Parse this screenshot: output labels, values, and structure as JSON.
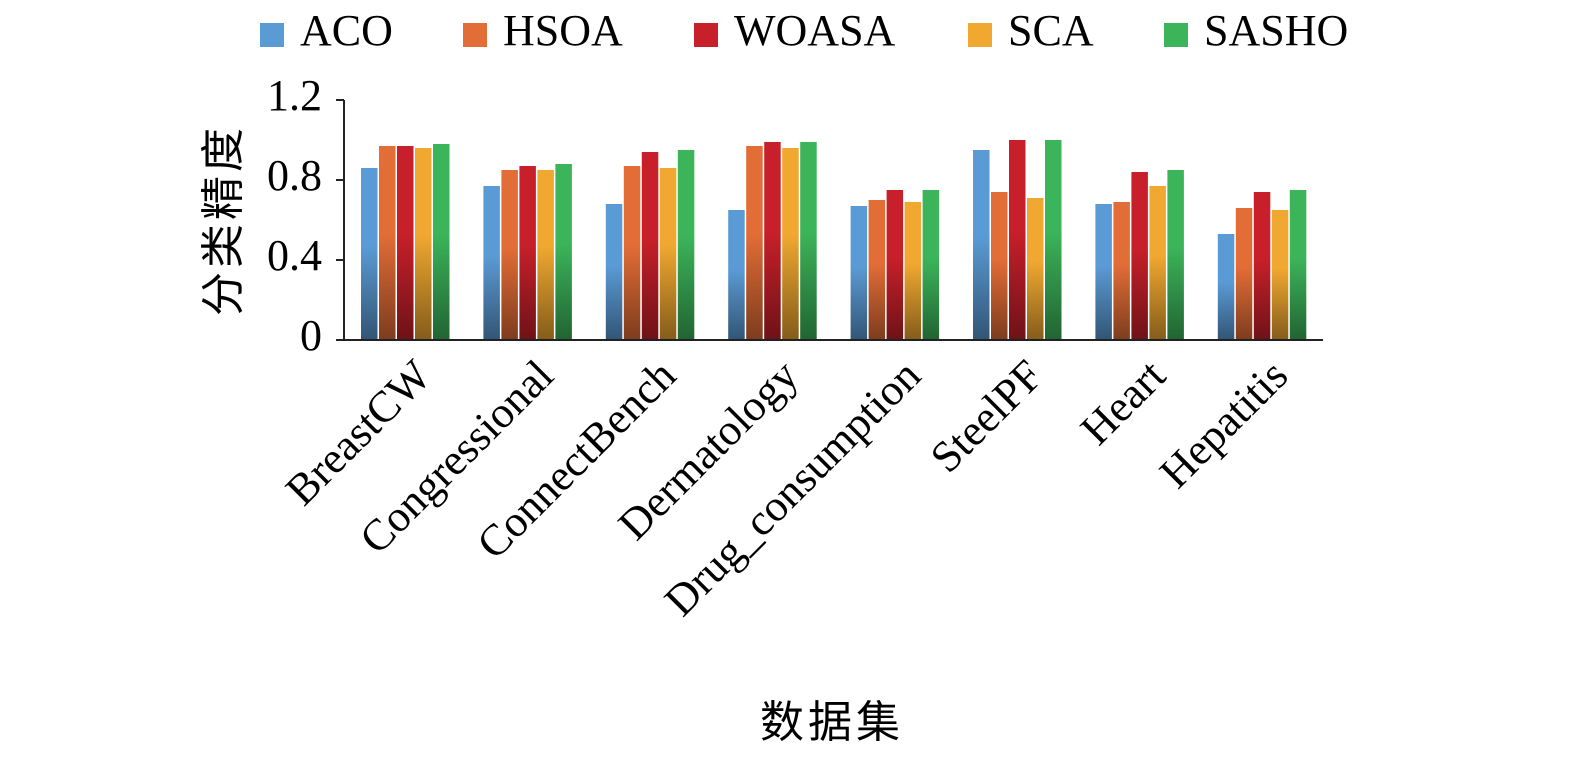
{
  "chart_data": {
    "type": "bar",
    "categories": [
      "BreastCW",
      "Congressional",
      "ConnectBench",
      "Dermatology",
      "Drug_consumption",
      "SteelPF",
      "Heart",
      "Hepatitis"
    ],
    "series": [
      {
        "name": "ACO",
        "color": "#5b9bd5",
        "values": [
          0.86,
          0.77,
          0.68,
          0.65,
          0.67,
          0.95,
          0.68,
          0.53
        ]
      },
      {
        "name": "HSOA",
        "color": "#e36d37",
        "values": [
          0.97,
          0.85,
          0.87,
          0.97,
          0.7,
          0.74,
          0.69,
          0.66
        ]
      },
      {
        "name": "WOASA",
        "color": "#c8202a",
        "values": [
          0.97,
          0.87,
          0.94,
          0.99,
          0.75,
          1.0,
          0.84,
          0.74
        ]
      },
      {
        "name": "SCA",
        "color": "#f0a830",
        "values": [
          0.96,
          0.85,
          0.86,
          0.96,
          0.69,
          0.71,
          0.77,
          0.65
        ]
      },
      {
        "name": "SASHO",
        "color": "#3cb55a",
        "values": [
          0.98,
          0.88,
          0.95,
          0.99,
          0.75,
          1.0,
          0.85,
          0.75
        ]
      }
    ],
    "ylim": [
      0,
      1.2
    ],
    "yticks": [
      "0",
      "0.4",
      "0.8",
      "1.2"
    ],
    "ytick_values": [
      0,
      0.4,
      0.8,
      1.2
    ],
    "xlabel": "数据集",
    "ylabel": "分类精度",
    "legend_position": "top",
    "grid": false
  }
}
